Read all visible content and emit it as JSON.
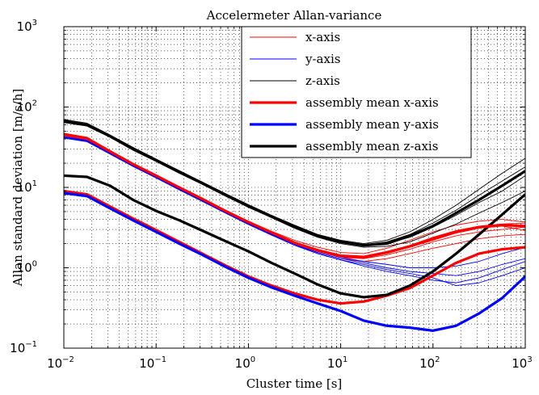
{
  "chart_data": {
    "type": "line",
    "title": "Accelermeter Allan-variance",
    "xlabel": "Cluster time [s]",
    "ylabel": "Allan standard deviation [m/s/h]",
    "xscale": "log",
    "yscale": "log",
    "xlim": [
      0.01,
      1000
    ],
    "ylim": [
      0.1,
      1000
    ],
    "grid": true,
    "legend_position": "top-right",
    "x_tick_labels": [
      {
        "base": "10",
        "exp": "−2"
      },
      {
        "base": "10",
        "exp": "−1"
      },
      {
        "base": "10",
        "exp": "0"
      },
      {
        "base": "10",
        "exp": "1"
      },
      {
        "base": "10",
        "exp": "2"
      },
      {
        "base": "10",
        "exp": "3"
      }
    ],
    "y_tick_labels": [
      {
        "base": "10",
        "exp": "−1"
      },
      {
        "base": "10",
        "exp": "0"
      },
      {
        "base": "10",
        "exp": "1"
      },
      {
        "base": "10",
        "exp": "2"
      },
      {
        "base": "10",
        "exp": "3"
      }
    ],
    "legend": [
      {
        "label": "x-axis",
        "color": "#ff0000",
        "style": "thin"
      },
      {
        "label": "y-axis",
        "color": "#0000ff",
        "style": "thin"
      },
      {
        "label": "z-axis",
        "color": "#000000",
        "style": "thin"
      },
      {
        "label": "assembly mean x-axis",
        "color": "#ff0000",
        "style": "thick"
      },
      {
        "label": "assembly mean y-axis",
        "color": "#0000ff",
        "style": "thick"
      },
      {
        "label": "assembly mean z-axis",
        "color": "#000000",
        "style": "thick"
      }
    ],
    "x": [
      0.01,
      0.0178,
      0.0316,
      0.0562,
      0.1,
      0.178,
      0.316,
      0.562,
      1,
      1.78,
      3.16,
      5.62,
      10,
      17.8,
      31.6,
      56.2,
      100,
      178,
      316,
      562,
      1000
    ],
    "series": [
      {
        "name": "x-axis",
        "color": "#ff0000",
        "style": "thin",
        "values": [
          46,
          41,
          28,
          19.5,
          14,
          10,
          7.2,
          5.1,
          3.7,
          2.75,
          2.1,
          1.7,
          1.45,
          1.4,
          1.6,
          1.9,
          2.4,
          2.9,
          3.3,
          3.5,
          3.6
        ]
      },
      {
        "name": "x-axis",
        "color": "#ff0000",
        "style": "thin",
        "values": [
          44,
          39,
          27,
          18.8,
          13.5,
          9.6,
          6.9,
          4.9,
          3.55,
          2.6,
          1.95,
          1.55,
          1.3,
          1.2,
          1.3,
          1.5,
          1.75,
          2.0,
          2.3,
          2.5,
          2.6
        ]
      },
      {
        "name": "x-axis",
        "color": "#ff0000",
        "style": "thin",
        "values": [
          47,
          42,
          29,
          20,
          14.2,
          10.2,
          7.3,
          5.2,
          3.8,
          2.85,
          2.2,
          1.8,
          1.55,
          1.5,
          1.75,
          2.2,
          2.8,
          3.4,
          3.8,
          4.0,
          3.7
        ]
      },
      {
        "name": "x-axis",
        "color": "#ff0000",
        "style": "thin",
        "values": [
          45,
          40,
          27.5,
          19,
          13.8,
          9.8,
          7.0,
          5.0,
          3.65,
          2.7,
          2.0,
          1.6,
          1.35,
          1.3,
          1.45,
          1.7,
          2.1,
          2.5,
          2.8,
          3.0,
          3.2
        ]
      },
      {
        "name": "x-axis",
        "color": "#ff0000",
        "style": "thin",
        "values": [
          46,
          41,
          28.5,
          19.7,
          14,
          10,
          7.1,
          5.05,
          3.7,
          2.75,
          2.05,
          1.65,
          1.4,
          1.35,
          1.5,
          1.8,
          2.2,
          2.7,
          3.1,
          3.3,
          2.9
        ]
      },
      {
        "name": "y-axis",
        "color": "#0000ff",
        "style": "thin",
        "values": [
          42,
          38,
          26.5,
          18.5,
          13.3,
          9.5,
          6.8,
          4.85,
          3.5,
          2.6,
          1.95,
          1.55,
          1.3,
          1.15,
          1.0,
          0.9,
          0.85,
          0.8,
          0.9,
          1.1,
          1.3
        ]
      },
      {
        "name": "y-axis",
        "color": "#0000ff",
        "style": "thin",
        "values": [
          41,
          37,
          26,
          18.2,
          13.1,
          9.3,
          6.7,
          4.8,
          3.45,
          2.55,
          1.9,
          1.5,
          1.25,
          1.05,
          0.9,
          0.8,
          0.7,
          0.65,
          0.75,
          0.95,
          1.2
        ]
      },
      {
        "name": "y-axis",
        "color": "#0000ff",
        "style": "thin",
        "values": [
          43,
          38.5,
          27,
          18.8,
          13.5,
          9.6,
          6.9,
          4.9,
          3.55,
          2.65,
          2.0,
          1.6,
          1.35,
          1.2,
          1.1,
          1.0,
          1.0,
          1.05,
          1.2,
          1.5,
          1.8
        ]
      },
      {
        "name": "y-axis",
        "color": "#0000ff",
        "style": "thin",
        "values": [
          42,
          37.5,
          26.5,
          18.4,
          13.2,
          9.4,
          6.8,
          4.85,
          3.5,
          2.6,
          1.95,
          1.5,
          1.25,
          1.1,
          0.95,
          0.85,
          0.75,
          0.6,
          0.65,
          0.8,
          1.0
        ]
      },
      {
        "name": "z-axis",
        "color": "#000000",
        "style": "thin",
        "values": [
          66,
          60,
          43,
          30,
          21.5,
          15.5,
          11.2,
          8.0,
          5.8,
          4.3,
          3.2,
          2.5,
          2.1,
          1.9,
          2.0,
          2.4,
          3.2,
          4.5,
          6.5,
          9.0,
          14
        ]
      },
      {
        "name": "z-axis",
        "color": "#000000",
        "style": "thin",
        "values": [
          70,
          63,
          45,
          31.5,
          22.5,
          16.2,
          11.7,
          8.4,
          6.1,
          4.5,
          3.4,
          2.6,
          2.2,
          2.0,
          2.2,
          2.8,
          4.0,
          6.0,
          9.5,
          15,
          23
        ]
      },
      {
        "name": "z-axis",
        "color": "#000000",
        "style": "thin",
        "values": [
          64,
          58,
          42,
          29,
          21,
          15,
          10.9,
          7.8,
          5.65,
          4.2,
          3.1,
          2.4,
          2.0,
          1.8,
          1.85,
          2.1,
          2.7,
          3.5,
          4.8,
          6.5,
          9
        ]
      },
      {
        "name": "z-axis",
        "color": "#000000",
        "style": "thin",
        "values": [
          68,
          61,
          44,
          30.5,
          22,
          15.8,
          11.4,
          8.2,
          5.95,
          4.4,
          3.3,
          2.55,
          2.15,
          1.95,
          2.1,
          2.6,
          3.6,
          5.2,
          8.0,
          12,
          18
        ]
      },
      {
        "name": "z-axis",
        "color": "#000000",
        "style": "thin",
        "values": [
          67,
          60,
          43.5,
          30.2,
          21.8,
          15.6,
          11.3,
          8.1,
          5.9,
          4.35,
          3.25,
          2.5,
          2.1,
          1.9,
          2.05,
          2.5,
          3.3,
          4.8,
          7.0,
          10.5,
          16
        ]
      },
      {
        "name": "assembly mean x-axis",
        "color": "#ff0000",
        "style": "thick",
        "values": [
          9,
          8.2,
          5.8,
          4.1,
          2.95,
          2.1,
          1.5,
          1.07,
          0.78,
          0.6,
          0.48,
          0.4,
          0.36,
          0.38,
          0.45,
          0.56,
          0.8,
          1.15,
          1.5,
          1.7,
          1.8
        ]
      },
      {
        "name": "assembly mean y-axis",
        "color": "#0000ff",
        "style": "thick",
        "values": [
          8.5,
          7.8,
          5.5,
          3.9,
          2.8,
          2.0,
          1.45,
          1.03,
          0.75,
          0.57,
          0.45,
          0.36,
          0.29,
          0.22,
          0.19,
          0.18,
          0.165,
          0.19,
          0.27,
          0.42,
          0.78
        ]
      },
      {
        "name": "assembly mean z-axis",
        "color": "#000000",
        "style": "thick",
        "values": [
          14,
          13.5,
          10.5,
          7.0,
          5.1,
          3.9,
          2.9,
          2.15,
          1.6,
          1.15,
          0.85,
          0.62,
          0.48,
          0.43,
          0.46,
          0.6,
          0.9,
          1.5,
          2.6,
          4.6,
          8.2
        ]
      },
      {
        "name": "assembly mean x-axis",
        "color": "#ff0000",
        "style": "thick",
        "values": [
          46,
          41,
          28,
          19.5,
          14,
          10,
          7.2,
          5.1,
          3.7,
          2.75,
          2.05,
          1.65,
          1.4,
          1.35,
          1.55,
          1.85,
          2.3,
          2.8,
          3.2,
          3.4,
          3.3
        ]
      },
      {
        "name": "assembly mean z-axis",
        "color": "#000000",
        "style": "thick",
        "values": [
          67,
          60,
          43.5,
          30.2,
          21.8,
          15.6,
          11.3,
          8.1,
          5.9,
          4.35,
          3.25,
          2.5,
          2.1,
          1.9,
          2.0,
          2.5,
          3.3,
          4.8,
          7.0,
          10.5,
          16
        ]
      }
    ]
  }
}
